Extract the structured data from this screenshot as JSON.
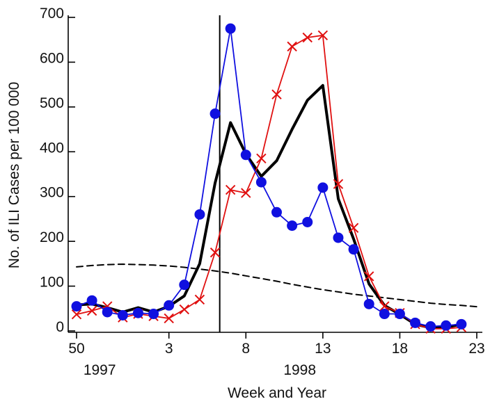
{
  "chart_data": {
    "type": "line",
    "title": "",
    "xlabel": "Week and Year",
    "ylabel": "No. of ILI Cases per 100 000",
    "ylim": [
      0,
      700
    ],
    "y_ticks": [
      0,
      100,
      200,
      300,
      400,
      500,
      600,
      700
    ],
    "x_ticks": [
      {
        "week_index": 0,
        "label": "50"
      },
      {
        "week_index": 6,
        "label": "3"
      },
      {
        "week_index": 11,
        "label": "8"
      },
      {
        "week_index": 16,
        "label": "13"
      },
      {
        "week_index": 21,
        "label": "18"
      },
      {
        "week_index": 26,
        "label": "23"
      }
    ],
    "year_labels": [
      {
        "label": "1997",
        "week_index": 1.5
      },
      {
        "label": "1998",
        "week_index": 14.5
      }
    ],
    "reference_line_week_index": 9.3,
    "grid": false,
    "legend": "none",
    "series": [
      {
        "color": "#1010e0",
        "marker": "circle",
        "line_width": 1.8,
        "values": [
          55,
          68,
          42,
          35,
          40,
          38,
          57,
          103,
          260,
          485,
          675,
          393,
          332,
          265,
          235,
          243,
          320,
          208,
          182,
          60,
          38,
          38,
          18,
          10,
          12,
          15
        ]
      },
      {
        "color": "#e01010",
        "marker": "x",
        "line_width": 1.8,
        "values": [
          37,
          45,
          55,
          30,
          38,
          33,
          28,
          48,
          70,
          175,
          315,
          308,
          385,
          528,
          635,
          655,
          660,
          328,
          230,
          122,
          55,
          40,
          15,
          5,
          5,
          8
        ]
      },
      {
        "color": "#000000",
        "marker": "none",
        "line_width": 4,
        "values": [
          58,
          60,
          52,
          42,
          52,
          42,
          55,
          78,
          150,
          330,
          465,
          395,
          345,
          380,
          450,
          515,
          548,
          295,
          205,
          105,
          57,
          37,
          15,
          7,
          8,
          15
        ]
      },
      {
        "color": "#000000",
        "marker": "none",
        "line_width": 2,
        "dashed": true,
        "values": [
          143,
          146,
          148,
          149,
          148,
          147,
          145,
          142,
          138,
          134,
          129,
          123,
          117,
          111,
          104,
          98,
          92,
          87,
          82,
          78,
          74,
          70,
          66,
          62,
          59,
          57,
          54
        ]
      }
    ]
  }
}
